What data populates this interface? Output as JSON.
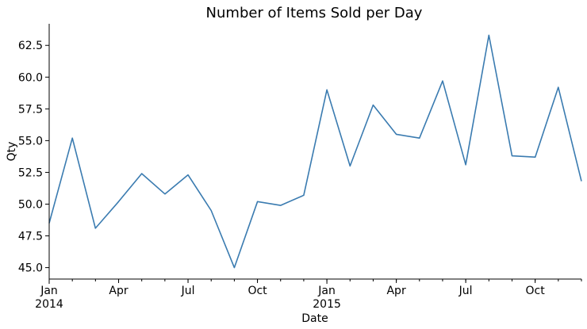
{
  "chart_data": {
    "type": "line",
    "title": "Number of Items Sold per Day",
    "xlabel": "Date",
    "ylabel": "Qty",
    "ylim": [
      44.1,
      64.2
    ],
    "xlim": [
      "2014-01",
      "2015-12"
    ],
    "grid": false,
    "legend": "none",
    "line_color": "#3a7bb0",
    "x": [
      "2014-01",
      "2014-02",
      "2014-03",
      "2014-04",
      "2014-05",
      "2014-06",
      "2014-07",
      "2014-08",
      "2014-09",
      "2014-10",
      "2014-11",
      "2014-12",
      "2015-01",
      "2015-02",
      "2015-03",
      "2015-04",
      "2015-05",
      "2015-06",
      "2015-07",
      "2015-08",
      "2015-09",
      "2015-10",
      "2015-11",
      "2015-12"
    ],
    "series": [
      {
        "values": [
          48.5,
          55.2,
          48.1,
          50.2,
          52.4,
          50.8,
          52.3,
          49.5,
          45.0,
          50.2,
          49.9,
          50.7,
          59.0,
          53.0,
          57.8,
          55.5,
          55.2,
          59.7,
          53.1,
          63.3,
          53.8,
          53.7,
          59.2,
          51.8
        ]
      }
    ],
    "y_ticks": [
      "45.0",
      "47.5",
      "50.0",
      "52.5",
      "55.0",
      "57.5",
      "60.0",
      "62.5"
    ],
    "y_tick_values": [
      45.0,
      47.5,
      50.0,
      52.5,
      55.0,
      57.5,
      60.0,
      62.5
    ],
    "x_major_ticks": [
      {
        "at": "2014-01",
        "label": "Jan",
        "sublabel": "2014"
      },
      {
        "at": "2015-01",
        "label": "Jan",
        "sublabel": "2015"
      }
    ],
    "x_minor_ticks": [
      {
        "at": "2014-04",
        "label": "Apr"
      },
      {
        "at": "2014-07",
        "label": "Jul"
      },
      {
        "at": "2014-10",
        "label": "Oct"
      },
      {
        "at": "2015-04",
        "label": "Apr"
      },
      {
        "at": "2015-07",
        "label": "Jul"
      },
      {
        "at": "2015-10",
        "label": "Oct"
      }
    ]
  }
}
